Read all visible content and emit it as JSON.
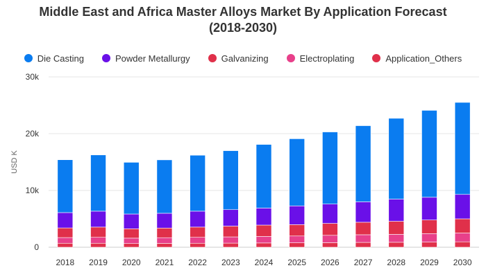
{
  "title_line1": "Middle East and Africa Master Alloys Market By Application Forecast",
  "title_line2": "(2018-2030)",
  "chart_data": {
    "type": "bar",
    "stacked": true,
    "title": "Middle East and Africa Master Alloys Market By Application Forecast (2018-2030)",
    "xlabel": "",
    "ylabel": "USD K",
    "ylim": [
      0,
      30000
    ],
    "yticks": [
      0,
      10000,
      20000,
      30000
    ],
    "ytick_labels": [
      "0",
      "10k",
      "20k",
      "30k"
    ],
    "grid": true,
    "legend_position": "top",
    "categories": [
      "2018",
      "2019",
      "2020",
      "2021",
      "2022",
      "2023",
      "2024",
      "2025",
      "2026",
      "2027",
      "2028",
      "2029",
      "2030"
    ],
    "series": [
      {
        "name": "Application_Others",
        "color": "#e0304a",
        "values": [
          700,
          700,
          650,
          680,
          700,
          720,
          750,
          780,
          800,
          850,
          870,
          900,
          950
        ]
      },
      {
        "name": "Electroplating",
        "color": "#e8408a",
        "values": [
          1000,
          1050,
          950,
          1000,
          1050,
          1100,
          1150,
          1200,
          1300,
          1350,
          1400,
          1500,
          1550
        ]
      },
      {
        "name": "Galvanizing",
        "color": "#e0304a",
        "values": [
          1700,
          1800,
          1650,
          1700,
          1800,
          1900,
          2000,
          2000,
          2100,
          2200,
          2300,
          2400,
          2500
        ]
      },
      {
        "name": "Powder Metallurgy",
        "color": "#6a10e8",
        "values": [
          2700,
          2800,
          2600,
          2600,
          2800,
          2900,
          3000,
          3300,
          3400,
          3600,
          3900,
          4000,
          4300
        ]
      },
      {
        "name": "Die Casting",
        "color": "#0a7cf0",
        "values": [
          9300,
          9900,
          9100,
          9400,
          9850,
          10380,
          11200,
          11820,
          12700,
          13400,
          14230,
          15300,
          16200
        ]
      }
    ]
  },
  "legend": [
    {
      "label": "Die Casting",
      "color": "#0a7cf0"
    },
    {
      "label": "Powder Metallurgy",
      "color": "#6a10e8"
    },
    {
      "label": "Galvanizing",
      "color": "#e0304a"
    },
    {
      "label": "Electroplating",
      "color": "#e8408a"
    },
    {
      "label": "Application_Others",
      "color": "#e0304a"
    }
  ]
}
